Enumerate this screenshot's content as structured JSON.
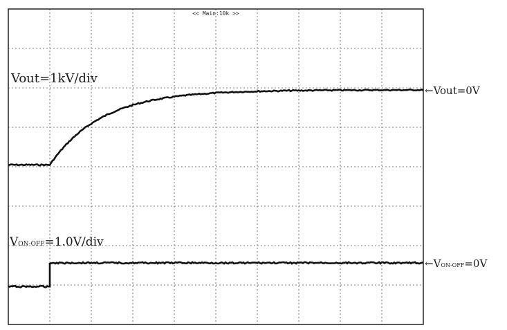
{
  "header": {
    "text": "<< Main:10k >>"
  },
  "channels": [
    {
      "id": "vout",
      "scale_label": "Vout=1kV/div",
      "marker_label": "←Vout=0V",
      "baseline_level_div": 0.0,
      "initial_level_div": -1.9,
      "step_time_div": 1.0,
      "tau_div": 1.25
    },
    {
      "id": "von-off",
      "scale_main": "V",
      "scale_sub": "ON-OFF",
      "scale_rest": "=1.0V/div",
      "marker_main": "←V",
      "marker_sub": "ON-OFF",
      "marker_rest": "=0V",
      "baseline_level_div": 0.0,
      "initial_level_div": -0.6,
      "step_time_div": 1.0
    }
  ],
  "chart_data": {
    "type": "line",
    "title": "",
    "xlabel": "",
    "ylabel": "",
    "grid": true,
    "x_divisions": 10,
    "y_divisions": 8,
    "series": [
      {
        "name": "Vout=1kV/div",
        "x": [
          0,
          1.0,
          1.2,
          1.5,
          2.0,
          2.5,
          3.0,
          4.0,
          5.0,
          6.0,
          8.0,
          10.0
        ],
        "y": [
          -1.9,
          -1.9,
          -1.6,
          -1.25,
          -0.85,
          -0.57,
          -0.39,
          -0.18,
          -0.08,
          -0.04,
          -0.01,
          0.0
        ]
      },
      {
        "name": "VON-OFF=1.0V/div",
        "x": [
          0,
          1.0,
          1.0,
          10.0
        ],
        "y": [
          -0.6,
          -0.6,
          0.0,
          0.0
        ]
      }
    ]
  }
}
